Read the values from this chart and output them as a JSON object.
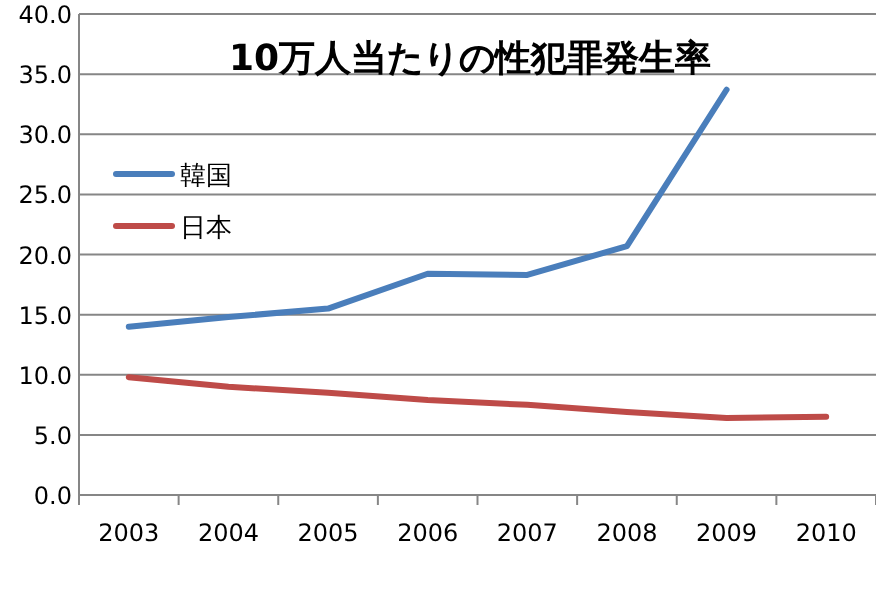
{
  "chart_data": {
    "type": "line",
    "title": "10万人当たりの性犯罪発生率",
    "categories": [
      "2003",
      "2004",
      "2005",
      "2006",
      "2007",
      "2008",
      "2009",
      "2010"
    ],
    "series": [
      {
        "name": "韓国",
        "color": "#4a7ebb",
        "values": [
          14.0,
          14.8,
          15.5,
          18.4,
          18.3,
          20.7,
          33.7,
          null
        ]
      },
      {
        "name": "日本",
        "color": "#be4b48",
        "values": [
          9.8,
          9.0,
          8.5,
          7.9,
          7.5,
          6.9,
          6.4,
          6.5
        ]
      }
    ],
    "ylim": [
      0,
      40
    ],
    "yticks": [
      {
        "value": 0,
        "label": "0.0"
      },
      {
        "value": 5,
        "label": "5.0"
      },
      {
        "value": 10,
        "label": "10.0"
      },
      {
        "value": 15,
        "label": "15.0"
      },
      {
        "value": 20,
        "label": "20.0"
      },
      {
        "value": 25,
        "label": "25.0"
      },
      {
        "value": 30,
        "label": "30.0"
      },
      {
        "value": 35,
        "label": "35.0"
      },
      {
        "value": 40,
        "label": "40.0"
      }
    ],
    "grid": "y",
    "legend": "top left",
    "marker": "none",
    "line_style": "solid"
  }
}
